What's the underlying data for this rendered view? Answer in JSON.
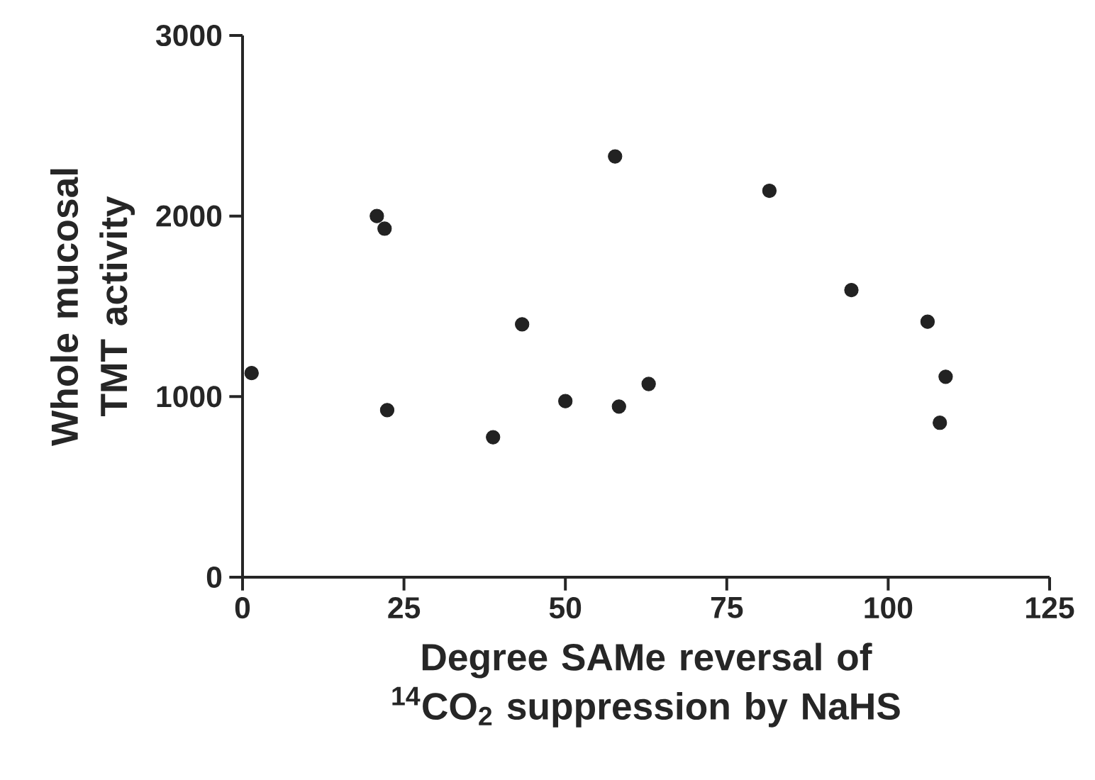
{
  "chart_data": {
    "type": "scatter",
    "xlabel": "Degree SAMe reversal of $^{14}$CO$_{2}$ suppression by NaHS",
    "ylabel": "Whole mucosal TMT activity",
    "series": [
      {
        "color": "#222222",
        "x": [
          1.4,
          20.8,
          22.0,
          22.4,
          38.8,
          43.3,
          50.0,
          57.7,
          58.3,
          62.9,
          81.6,
          94.3,
          106.1,
          108.9,
          108.0
        ],
        "values": [
          1130,
          2000,
          1930,
          925,
          775,
          1400,
          975,
          2330,
          945,
          1070,
          2140,
          1590,
          1415,
          1110,
          855
        ]
      }
    ],
    "xlim": [
      0,
      125
    ],
    "xticks": [
      0,
      25,
      50,
      75,
      100,
      125
    ],
    "ylim": [
      0,
      3000
    ],
    "yticks": [
      0,
      1000,
      2000,
      3000
    ]
  }
}
